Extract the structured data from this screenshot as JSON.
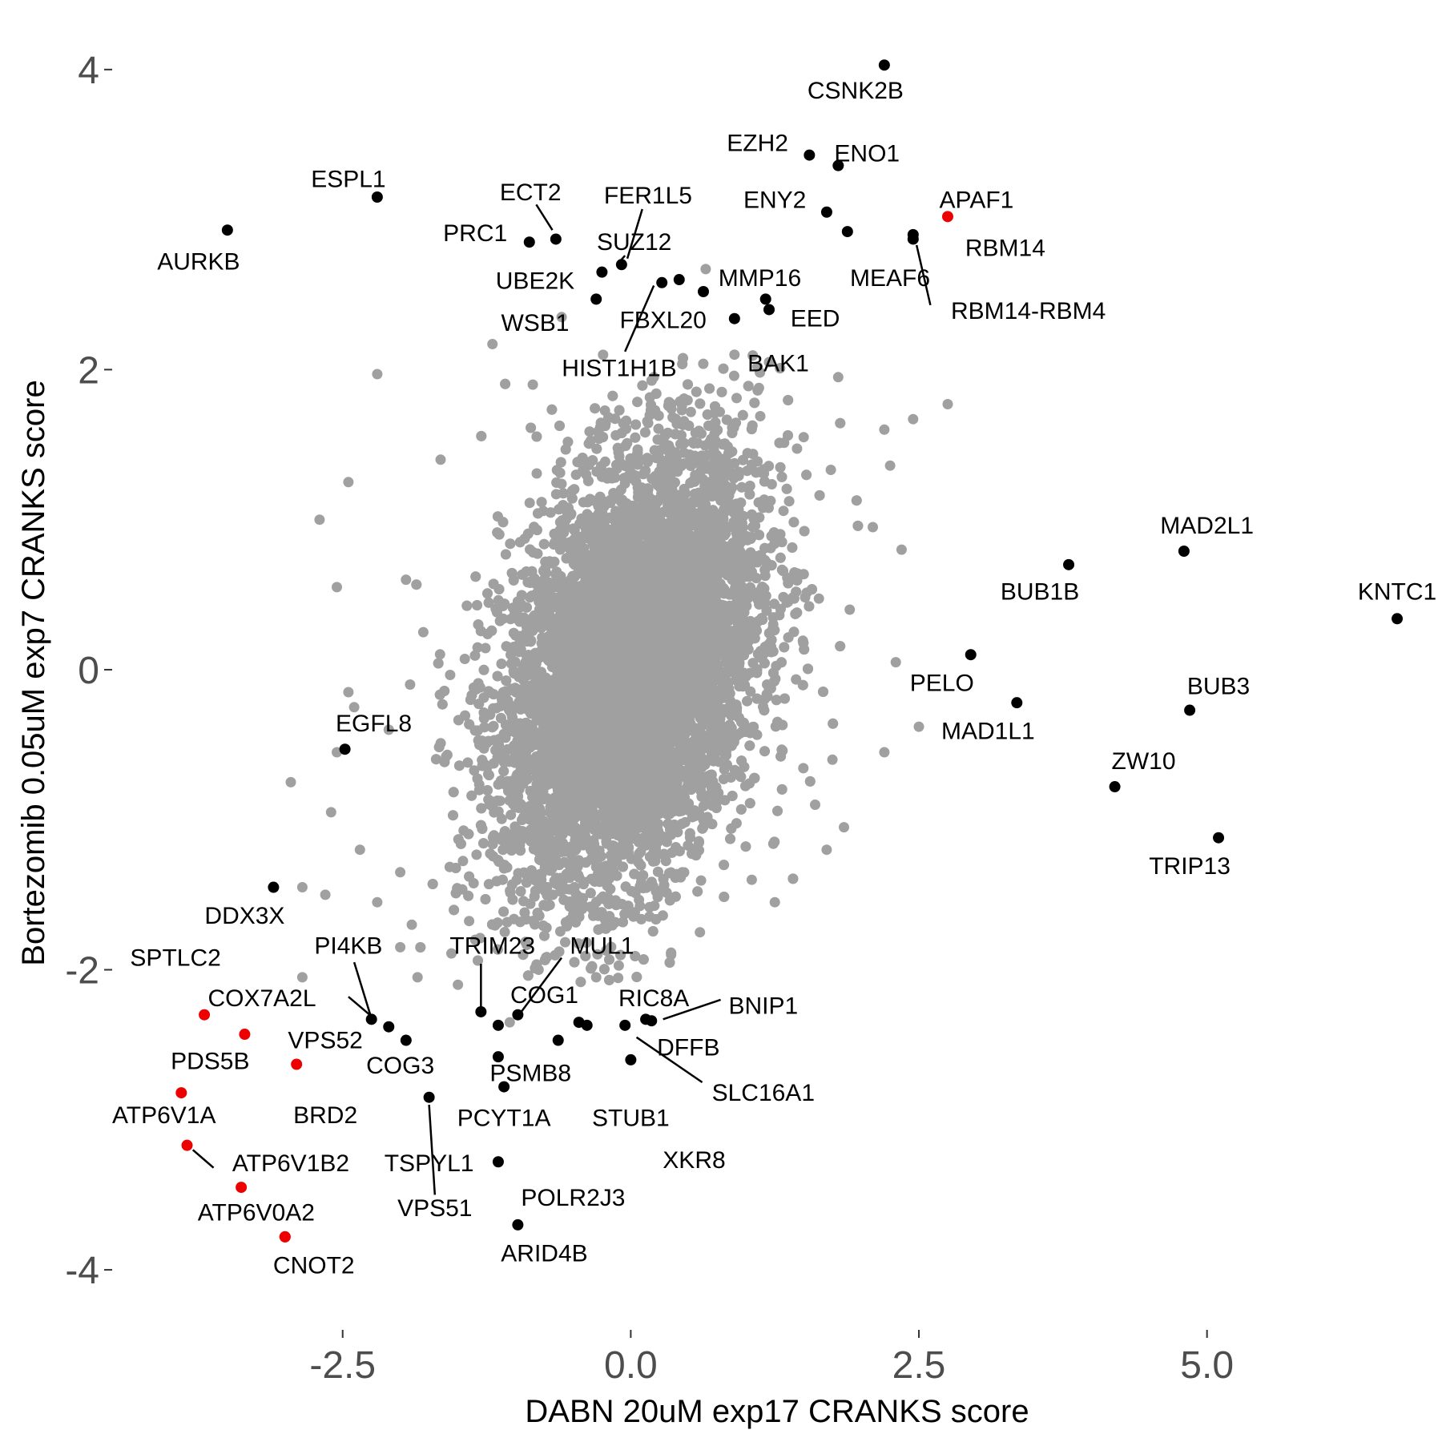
{
  "chart_data": {
    "type": "scatter",
    "xlabel": "DABN 20uM exp17 CRANKS score",
    "ylabel": "Bortezomib 0.05uM exp7 CRANKS score",
    "xlim": [
      -4.5,
      6.9
    ],
    "ylim": [
      -4.4,
      4.25
    ],
    "x_ticks": [
      -2.5,
      0.0,
      2.5,
      5.0
    ],
    "x_tick_labels": [
      "-2.5",
      "0.0",
      "2.5",
      "5.0"
    ],
    "y_ticks": [
      -4,
      -2,
      0,
      2,
      4
    ],
    "y_tick_labels": [
      "-4",
      "-2",
      "0",
      "2",
      "4"
    ],
    "grid": false,
    "colors": {
      "background_points": "#a0a0a0",
      "highlight_black": "#000000",
      "highlight_red": "#ee0000"
    },
    "background_cloud": {
      "description_count": 12000,
      "center": [
        0.0,
        0.0
      ],
      "sd": [
        0.55,
        0.72
      ],
      "correlation": 0.35,
      "sample_points": [
        [
          -2.7,
          1.0
        ],
        [
          -2.45,
          1.25
        ],
        [
          -2.2,
          1.97
        ],
        [
          -2.55,
          0.55
        ],
        [
          -2.95,
          -0.75
        ],
        [
          -2.45,
          -0.15
        ],
        [
          -2.4,
          -0.25
        ],
        [
          -2.55,
          -0.55
        ],
        [
          -2.35,
          -1.2
        ],
        [
          -2.0,
          -1.35
        ],
        [
          -2.85,
          -1.45
        ],
        [
          -2.85,
          -2.05
        ],
        [
          -1.2,
          2.17
        ],
        [
          -0.6,
          2.35
        ],
        [
          0.65,
          2.67
        ],
        [
          1.2,
          2.05
        ],
        [
          1.1,
          2.02
        ],
        [
          0.9,
          2.1
        ],
        [
          1.8,
          1.95
        ],
        [
          2.2,
          1.6
        ],
        [
          2.45,
          1.67
        ],
        [
          2.75,
          1.77
        ],
        [
          2.25,
          1.36
        ],
        [
          2.35,
          0.8
        ],
        [
          2.1,
          0.95
        ],
        [
          2.3,
          0.05
        ],
        [
          2.2,
          -0.55
        ],
        [
          2.5,
          -0.38
        ],
        [
          1.85,
          -1.05
        ],
        [
          1.7,
          -1.2
        ],
        [
          1.6,
          -0.9
        ],
        [
          -1.65,
          1.4
        ],
        [
          -1.5,
          -2.1
        ],
        [
          -1.85,
          -2.05
        ],
        [
          -1.05,
          -2.35
        ],
        [
          -0.8,
          -2.0
        ],
        [
          -0.3,
          -2.05
        ],
        [
          0.6,
          -1.75
        ],
        [
          1.05,
          -1.4
        ],
        [
          1.25,
          -1.55
        ],
        [
          -2.65,
          -1.5
        ],
        [
          -2.0,
          -1.85
        ],
        [
          -2.2,
          -1.55
        ],
        [
          -1.9,
          -1.7
        ],
        [
          -2.6,
          -0.95
        ],
        [
          -1.95,
          0.6
        ],
        [
          -1.8,
          0.25
        ],
        [
          -2.1,
          -0.4
        ],
        [
          -0.85,
          1.9
        ],
        [
          0.2,
          1.95
        ],
        [
          1.5,
          1.55
        ],
        [
          1.9,
          0.4
        ],
        [
          1.75,
          -0.6
        ],
        [
          -1.35,
          -1.8
        ],
        [
          0.35,
          -1.9
        ]
      ]
    },
    "highlighted_points": [
      {
        "label": "CSNK2B",
        "x": 2.2,
        "y": 4.03,
        "color": "black"
      },
      {
        "label": "EZH2",
        "x": 1.55,
        "y": 3.43,
        "color": "black"
      },
      {
        "label": "ENO1",
        "x": 1.8,
        "y": 3.36,
        "color": "black"
      },
      {
        "label": "ENY2",
        "x": 1.7,
        "y": 3.05,
        "color": "black"
      },
      {
        "label": "APAF1",
        "x": 2.75,
        "y": 3.02,
        "color": "red"
      },
      {
        "label": "MEAF6",
        "x": 1.88,
        "y": 2.92,
        "color": "black"
      },
      {
        "label": "RBM14",
        "x": 2.45,
        "y": 2.9,
        "color": "black"
      },
      {
        "label": "RBM14-RBM4",
        "x": 2.45,
        "y": 2.87,
        "color": "black"
      },
      {
        "label": "ESPL1",
        "x": -2.2,
        "y": 3.15,
        "color": "black"
      },
      {
        "label": "AURKB",
        "x": -3.5,
        "y": 2.93,
        "color": "black"
      },
      {
        "label": "PRC1",
        "x": -0.88,
        "y": 2.85,
        "color": "black"
      },
      {
        "label": "ECT2",
        "x": -0.65,
        "y": 2.87,
        "color": "black"
      },
      {
        "label": "FER1L5",
        "x": -0.08,
        "y": 2.7,
        "color": "black"
      },
      {
        "label": "SUZ12",
        "x": -0.25,
        "y": 2.65,
        "color": "black"
      },
      {
        "label": "UBE2K",
        "x": -0.3,
        "y": 2.47,
        "color": "black"
      },
      {
        "label": "HIST1H1B",
        "x": 0.27,
        "y": 2.58,
        "color": "black"
      },
      {
        "label": "WSB1",
        "x": 0.42,
        "y": 2.6,
        "color": "black"
      },
      {
        "label": "FBXL20",
        "x": 0.63,
        "y": 2.52,
        "color": "black"
      },
      {
        "label": "MMP16",
        "x": 1.17,
        "y": 2.47,
        "color": "black"
      },
      {
        "label": "EED",
        "x": 1.2,
        "y": 2.4,
        "color": "black"
      },
      {
        "label": "BAK1",
        "x": 0.9,
        "y": 2.34,
        "color": "black"
      },
      {
        "label": "MAD2L1",
        "x": 4.8,
        "y": 0.79,
        "color": "black"
      },
      {
        "label": "BUB1B",
        "x": 3.8,
        "y": 0.7,
        "color": "black"
      },
      {
        "label": "KNTC1",
        "x": 6.65,
        "y": 0.34,
        "color": "black"
      },
      {
        "label": "PELO",
        "x": 2.95,
        "y": 0.1,
        "color": "black"
      },
      {
        "label": "MAD1L1",
        "x": 3.35,
        "y": -0.22,
        "color": "black"
      },
      {
        "label": "BUB3",
        "x": 4.85,
        "y": -0.27,
        "color": "black"
      },
      {
        "label": "ZW10",
        "x": 4.2,
        "y": -0.78,
        "color": "black"
      },
      {
        "label": "TRIP13",
        "x": 5.1,
        "y": -1.12,
        "color": "black"
      },
      {
        "label": "EGFL8",
        "x": -2.48,
        "y": -0.53,
        "color": "black"
      },
      {
        "label": "DDX3X",
        "x": -3.1,
        "y": -1.45,
        "color": "black"
      },
      {
        "label": "SPTLC2",
        "x": -3.7,
        "y": -2.3,
        "color": "red"
      },
      {
        "label": "COX7A2L",
        "x": -3.35,
        "y": -2.43,
        "color": "red"
      },
      {
        "label": "VPS52",
        "x": -2.9,
        "y": -2.63,
        "color": "red"
      },
      {
        "label": "PDS5B",
        "x": -3.9,
        "y": -2.82,
        "color": "red"
      },
      {
        "label": "ATP6V1A",
        "x": -3.85,
        "y": -3.17,
        "color": "red"
      },
      {
        "label": "ATP6V1B2",
        "x": -3.38,
        "y": -3.45,
        "color": "red"
      },
      {
        "label": "ATP6V0A2",
        "x": -3.0,
        "y": -3.78,
        "color": "red"
      },
      {
        "label": "CNOT2",
        "x": -3.0,
        "y": -3.78,
        "color": "red"
      },
      {
        "label": "PI4KB",
        "x": -2.25,
        "y": -2.33,
        "color": "black"
      },
      {
        "label": "COG3",
        "x": -2.1,
        "y": -2.38,
        "color": "black"
      },
      {
        "label": "BRD2",
        "x": -1.95,
        "y": -2.47,
        "color": "black"
      },
      {
        "label": "TRIM23",
        "x": -1.3,
        "y": -2.28,
        "color": "black"
      },
      {
        "label": "MUL1",
        "x": -0.98,
        "y": -2.3,
        "color": "black"
      },
      {
        "label": "COG1",
        "x": -1.15,
        "y": -2.37,
        "color": "black"
      },
      {
        "label": "RIC8A",
        "x": -0.45,
        "y": -2.35,
        "color": "black"
      },
      {
        "label": "PSMB8",
        "x": -0.38,
        "y": -2.37,
        "color": "black"
      },
      {
        "label": "BNIP1",
        "x": 0.13,
        "y": -2.33,
        "color": "black"
      },
      {
        "label": "DFFB",
        "x": 0.18,
        "y": -2.34,
        "color": "black"
      },
      {
        "label": "SLC16A1",
        "x": -0.05,
        "y": -2.37,
        "color": "black"
      },
      {
        "label": "STUB1",
        "x": 0.0,
        "y": -2.6,
        "color": "black"
      },
      {
        "label": "PCYT1A",
        "x": -1.15,
        "y": -2.58,
        "color": "black"
      },
      {
        "label": "TSPYL1",
        "x": -1.1,
        "y": -2.78,
        "color": "black"
      },
      {
        "label": "VPS51",
        "x": -1.75,
        "y": -2.85,
        "color": "black"
      },
      {
        "label": "XKR8",
        "x": -0.63,
        "y": -2.47,
        "color": "black"
      },
      {
        "label": "POLR2J3",
        "x": -1.15,
        "y": -3.28,
        "color": "black"
      },
      {
        "label": "ARID4B",
        "x": -0.98,
        "y": -3.7,
        "color": "black"
      }
    ],
    "annotations": [
      {
        "text": "CSNK2B",
        "x": 1.95,
        "y": 3.85
      },
      {
        "text": "EZH2",
        "x": 1.1,
        "y": 3.5
      },
      {
        "text": "ENO1",
        "x": 2.05,
        "y": 3.43
      },
      {
        "text": "ENY2",
        "x": 1.25,
        "y": 3.12
      },
      {
        "text": "APAF1",
        "x": 3.0,
        "y": 3.12
      },
      {
        "text": "RBM14",
        "x": 3.25,
        "y": 2.8
      },
      {
        "text": "MEAF6",
        "x": 2.25,
        "y": 2.6
      },
      {
        "text": "RBM14-RBM4",
        "x": 3.45,
        "y": 2.38
      },
      {
        "text": "ESPL1",
        "x": -2.45,
        "y": 3.26
      },
      {
        "text": "AURKB",
        "x": -3.75,
        "y": 2.71
      },
      {
        "text": "PRC1",
        "x": -1.35,
        "y": 2.9
      },
      {
        "text": "ECT2",
        "x": -0.87,
        "y": 3.17
      },
      {
        "text": "FER1L5",
        "x": 0.15,
        "y": 3.15
      },
      {
        "text": "SUZ12",
        "x": 0.03,
        "y": 2.84
      },
      {
        "text": "UBE2K",
        "x": -0.83,
        "y": 2.58
      },
      {
        "text": "MMP16",
        "x": 1.12,
        "y": 2.6
      },
      {
        "text": "WSB1",
        "x": -0.83,
        "y": 2.3
      },
      {
        "text": "FBXL20",
        "x": 0.28,
        "y": 2.32
      },
      {
        "text": "EED",
        "x": 1.6,
        "y": 2.33
      },
      {
        "text": "HIST1H1B",
        "x": -0.1,
        "y": 2.0
      },
      {
        "text": "BAK1",
        "x": 1.28,
        "y": 2.03
      },
      {
        "text": "MAD2L1",
        "x": 5.0,
        "y": 0.95
      },
      {
        "text": "BUB1B",
        "x": 3.55,
        "y": 0.51
      },
      {
        "text": "KNTC1",
        "x": 6.65,
        "y": 0.51
      },
      {
        "text": "PELO",
        "x": 2.7,
        "y": -0.1
      },
      {
        "text": "MAD1L1",
        "x": 3.1,
        "y": -0.42
      },
      {
        "text": "BUB3",
        "x": 5.1,
        "y": -0.12
      },
      {
        "text": "ZW10",
        "x": 4.45,
        "y": -0.62
      },
      {
        "text": "TRIP13",
        "x": 4.85,
        "y": -1.32
      },
      {
        "text": "EGFL8",
        "x": -2.23,
        "y": -0.37
      },
      {
        "text": "DDX3X",
        "x": -3.35,
        "y": -1.65
      },
      {
        "text": "SPTLC2",
        "x": -3.95,
        "y": -1.93
      },
      {
        "text": "COX7A2L",
        "x": -3.2,
        "y": -2.2
      },
      {
        "text": "VPS52",
        "x": -2.65,
        "y": -2.48
      },
      {
        "text": "PDS5B",
        "x": -3.65,
        "y": -2.62
      },
      {
        "text": "ATP6V1A",
        "x": -4.05,
        "y": -2.98
      },
      {
        "text": "ATP6V1B2",
        "x": -2.95,
        "y": -3.3
      },
      {
        "text": "ATP6V0A2",
        "x": -3.25,
        "y": -3.63
      },
      {
        "text": "CNOT2",
        "x": -2.75,
        "y": -3.98
      },
      {
        "text": "PI4KB",
        "x": -2.45,
        "y": -1.85
      },
      {
        "text": "COG3",
        "x": -2.0,
        "y": -2.65
      },
      {
        "text": "BRD2",
        "x": -2.65,
        "y": -2.98
      },
      {
        "text": "TRIM23",
        "x": -1.2,
        "y": -1.85
      },
      {
        "text": "MUL1",
        "x": -0.25,
        "y": -1.85
      },
      {
        "text": "COG1",
        "x": -0.75,
        "y": -2.18
      },
      {
        "text": "RIC8A",
        "x": 0.2,
        "y": -2.2
      },
      {
        "text": "PSMB8",
        "x": -0.87,
        "y": -2.7
      },
      {
        "text": "BNIP1",
        "x": 1.15,
        "y": -2.25
      },
      {
        "text": "DFFB",
        "x": 0.5,
        "y": -2.53
      },
      {
        "text": "SLC16A1",
        "x": 1.15,
        "y": -2.83
      },
      {
        "text": "STUB1",
        "x": 0.0,
        "y": -3.0
      },
      {
        "text": "PCYT1A",
        "x": -1.1,
        "y": -3.0
      },
      {
        "text": "TSPYL1",
        "x": -1.75,
        "y": -3.3
      },
      {
        "text": "VPS51",
        "x": -1.7,
        "y": -3.6
      },
      {
        "text": "XKR8",
        "x": 0.55,
        "y": -3.28
      },
      {
        "text": "POLR2J3",
        "x": -0.5,
        "y": -3.53
      },
      {
        "text": "ARID4B",
        "x": -0.75,
        "y": -3.9
      }
    ],
    "leader_lines": [
      [
        "ECT2",
        -0.82,
        3.1,
        -0.68,
        2.93
      ],
      [
        "FER1L5",
        0.1,
        3.07,
        -0.03,
        2.74
      ],
      [
        "SUZ12",
        -0.05,
        2.76,
        -0.12,
        2.7
      ],
      [
        "HIST1H1B",
        -0.05,
        2.12,
        0.2,
        2.56
      ],
      [
        "RBM14-RBM4",
        2.6,
        2.43,
        2.48,
        2.83
      ],
      [
        "COX7A2L",
        -2.45,
        -2.18,
        -2.25,
        -2.31
      ],
      [
        "PI4KB",
        -2.4,
        -1.95,
        -2.26,
        -2.3
      ],
      [
        "TRIM23",
        -1.3,
        -1.96,
        -1.3,
        -2.25
      ],
      [
        "MUL1",
        -0.6,
        -1.92,
        -0.95,
        -2.28
      ],
      [
        "BNIP1",
        0.78,
        -2.2,
        0.28,
        -2.33
      ],
      [
        "SLC16A1",
        0.62,
        -2.75,
        0.05,
        -2.45
      ],
      [
        "ATP6V1B2",
        -3.62,
        -3.32,
        -3.8,
        -3.2
      ],
      [
        "VPS51",
        -1.7,
        -3.5,
        -1.75,
        -2.9
      ]
    ]
  }
}
